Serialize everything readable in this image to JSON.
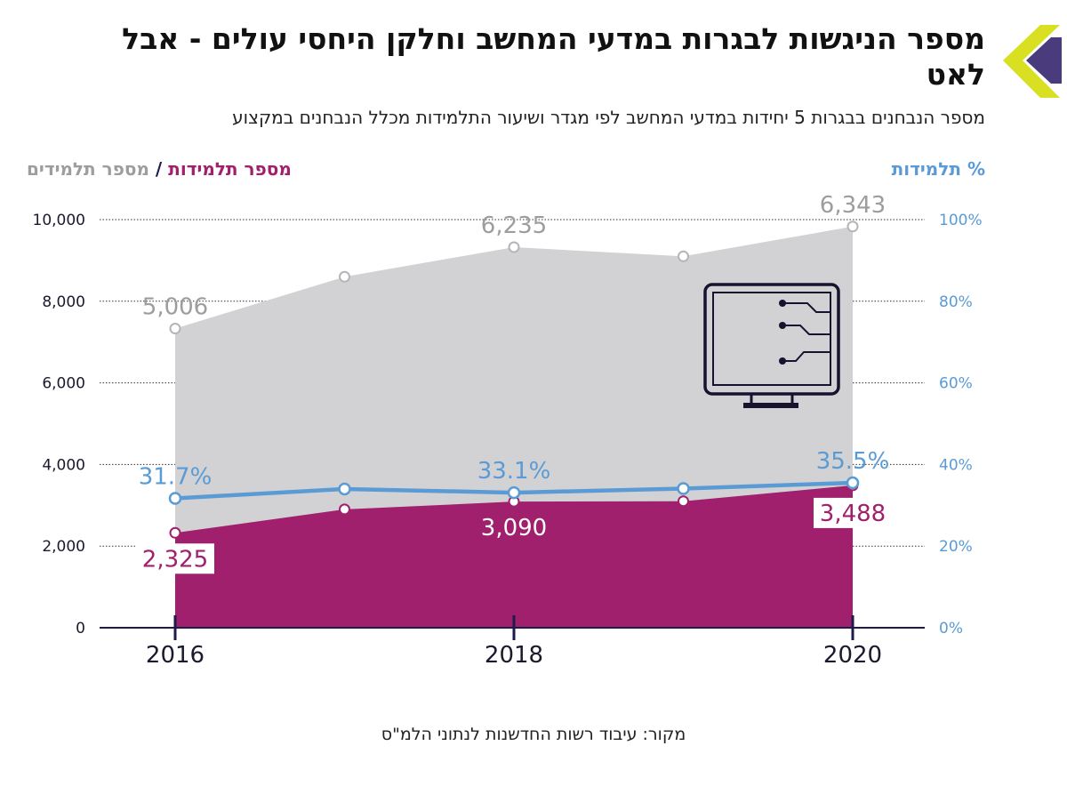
{
  "header": {
    "title": "מספר הניגשות לבגרות במדעי המחשב וחלקן היחסי עולים - אבל לאט",
    "subtitle": "מספר הנבחנים בבגרות 5 יחידות במדעי המחשב לפי מגדר ושיעור התלמידות מכלל הנבחנים במקצוע"
  },
  "legend": {
    "female": "מספר תלמידות",
    "separator": "/",
    "male": "מספר תלמידים",
    "percent": "% תלמידות"
  },
  "source": "מקור: עיבוד רשות החדשנות לנתוני הלמ\"ס",
  "colors": {
    "female": "#a0206e",
    "male_area": "#d2d2d4",
    "male_text": "#9d9d9d",
    "percent": "#5b9bd5",
    "axis": "#1e1b4b",
    "logo_yellow": "#d8e021",
    "logo_purple": "#4a3b7c"
  },
  "icons": {
    "logo": "chevron-logo-icon",
    "computer": "computer-circuit-icon"
  },
  "chart_data": {
    "type": "area",
    "x": [
      2016,
      2017,
      2018,
      2019,
      2020
    ],
    "x_tick_labels": [
      "2016",
      "2018",
      "2020"
    ],
    "series": [
      {
        "name": "מספר תלמידות",
        "axis": "left",
        "values": [
          2325,
          2900,
          3090,
          3100,
          3488
        ],
        "labels": [
          "2,325",
          "",
          "3,090",
          "",
          "3,488"
        ]
      },
      {
        "name": "מספר תלמידים",
        "axis": "left",
        "stacked": true,
        "values": [
          5006,
          5700,
          6235,
          6000,
          6343
        ],
        "labels": [
          "5,006",
          "",
          "6,235",
          "",
          "6,343"
        ]
      },
      {
        "name": "% תלמידות",
        "axis": "right",
        "values": [
          31.7,
          34.0,
          33.1,
          34.1,
          35.5
        ],
        "labels": [
          "31.7%",
          "",
          "33.1%",
          "",
          "35.5%"
        ]
      }
    ],
    "y_left": {
      "ylim": [
        0,
        10000
      ],
      "ticks": [
        0,
        2000,
        4000,
        6000,
        8000,
        10000
      ],
      "tick_labels": [
        "0",
        "2,000",
        "4,000",
        "6,000",
        "8,000",
        "10,000"
      ]
    },
    "y_right": {
      "ylim": [
        0,
        100
      ],
      "ticks": [
        0,
        20,
        40,
        60,
        80,
        100
      ],
      "tick_labels": [
        "0%",
        "20%",
        "40%",
        "60%",
        "80%",
        "100%"
      ]
    },
    "grid": true,
    "legend_position": "top"
  }
}
